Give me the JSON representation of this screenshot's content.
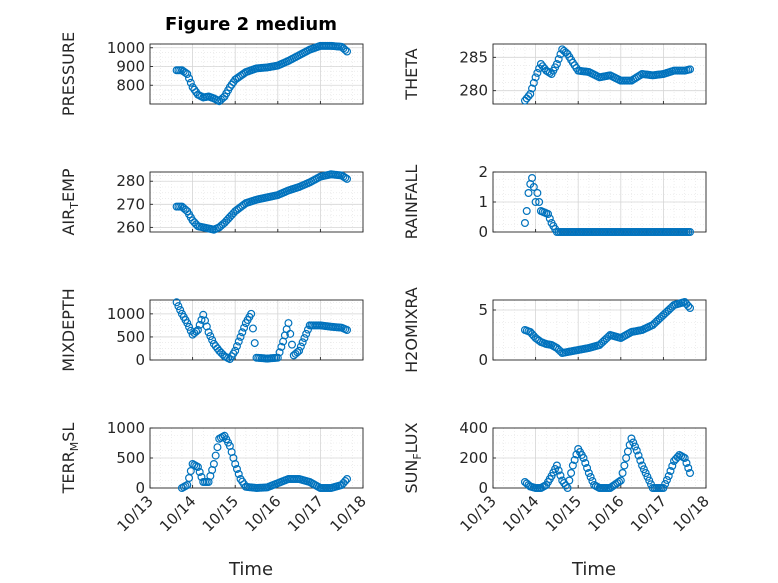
{
  "title": "Figure 2 medium",
  "xlabel": "Time",
  "x_ticks": [
    "10/13",
    "10/14",
    "10/15",
    "10/16",
    "10/17",
    "10/18"
  ],
  "marker_color": "#0072bd",
  "chart_data": [
    {
      "type": "scatter",
      "ylabel": "PRESSURE",
      "ylabel_main": "PRESSURE",
      "ylabel_sub": "",
      "ylabel_rest": "",
      "ylim": [
        700,
        1020
      ],
      "yticks": [
        800,
        900,
        1000
      ],
      "x": [
        "10/13 15:00",
        "10/13 18:00",
        "10/13 21:00",
        "10/14 00:00",
        "10/14 03:00",
        "10/14 06:00",
        "10/14 09:00",
        "10/14 12:00",
        "10/14 15:00",
        "10/14 18:00",
        "10/14 21:00",
        "10/15 00:00",
        "10/15 06:00",
        "10/15 12:00",
        "10/15 18:00",
        "10/16 00:00",
        "10/16 06:00",
        "10/16 12:00",
        "10/16 18:00",
        "10/17 00:00",
        "10/17 06:00",
        "10/17 12:00",
        "10/17 15:00"
      ],
      "values": [
        880,
        880,
        860,
        790,
        750,
        735,
        740,
        730,
        715,
        740,
        790,
        830,
        870,
        890,
        895,
        905,
        930,
        960,
        990,
        1010,
        1010,
        1005,
        980
      ]
    },
    {
      "type": "scatter",
      "ylabel": "THETA",
      "ylabel_main": "THETA",
      "ylabel_sub": "",
      "ylabel_rest": "",
      "ylim": [
        278,
        287
      ],
      "yticks": [
        280,
        285
      ],
      "x": [
        "10/13 18:00",
        "10/13 21:00",
        "10/14 00:00",
        "10/14 03:00",
        "10/14 06:00",
        "10/14 09:00",
        "10/14 12:00",
        "10/14 15:00",
        "10/14 18:00",
        "10/14 21:00",
        "10/15 00:00",
        "10/15 06:00",
        "10/15 12:00",
        "10/15 18:00",
        "10/16 00:00",
        "10/16 06:00",
        "10/16 12:00",
        "10/16 18:00",
        "10/17 00:00",
        "10/17 06:00",
        "10/17 12:00",
        "10/17 15:00"
      ],
      "values": [
        278.5,
        279.5,
        282,
        284,
        283,
        282.5,
        284,
        286.2,
        285.5,
        284.2,
        283,
        282.8,
        282,
        282.3,
        281.5,
        281.5,
        282.5,
        282.3,
        282.5,
        283,
        283,
        283.2
      ]
    },
    {
      "type": "scatter",
      "ylabel": "AIR_TEMP",
      "ylabel_main": "AIR",
      "ylabel_sub": "T",
      "ylabel_rest": "EMP",
      "ylim": [
        258,
        284
      ],
      "yticks": [
        260,
        270,
        280
      ],
      "x": [
        "10/13 15:00",
        "10/13 18:00",
        "10/13 21:00",
        "10/14 00:00",
        "10/14 03:00",
        "10/14 06:00",
        "10/14 09:00",
        "10/14 12:00",
        "10/14 15:00",
        "10/14 18:00",
        "10/15 00:00",
        "10/15 06:00",
        "10/15 12:00",
        "10/15 18:00",
        "10/16 00:00",
        "10/16 06:00",
        "10/16 12:00",
        "10/16 18:00",
        "10/17 00:00",
        "10/17 06:00",
        "10/17 12:00",
        "10/17 15:00"
      ],
      "values": [
        269,
        269,
        267,
        263,
        260.5,
        260,
        259.5,
        259,
        260,
        262,
        267,
        270.5,
        272,
        273,
        274,
        276,
        277.5,
        279.5,
        282,
        283,
        282.5,
        281
      ]
    },
    {
      "type": "scatter",
      "ylabel": "RAINFALL",
      "ylabel_main": "RAINFALL",
      "ylabel_sub": "",
      "ylabel_rest": "",
      "ylim": [
        0,
        2
      ],
      "yticks": [
        0,
        1,
        2
      ],
      "x": [
        "10/13 18:00",
        "10/13 19:00",
        "10/13 20:00",
        "10/13 21:00",
        "10/13 22:00",
        "10/13 23:00",
        "10/14 00:00",
        "10/14 01:00",
        "10/14 03:00",
        "10/14 05:00",
        "10/14 07:00",
        "10/14 09:00",
        "10/14 12:00",
        "10/14 18:00",
        "10/15 00:00",
        "10/15 12:00",
        "10/16 00:00",
        "10/16 12:00",
        "10/17 00:00",
        "10/17 12:00",
        "10/17 15:00"
      ],
      "values": [
        0.3,
        0.7,
        1.3,
        1.6,
        1.8,
        1.5,
        1.0,
        1.3,
        0.7,
        0.65,
        0.6,
        0.3,
        0,
        0,
        0,
        0,
        0,
        0,
        0,
        0,
        0
      ]
    },
    {
      "type": "scatter",
      "ylabel": "MIXDEPTH",
      "ylabel_main": "MIXDEPTH",
      "ylabel_sub": "",
      "ylabel_rest": "",
      "ylim": [
        0,
        1300
      ],
      "yticks": [
        0,
        500,
        1000
      ],
      "x": [
        "10/13 15:00",
        "10/13 18:00",
        "10/13 21:00",
        "10/14 00:00",
        "10/14 03:00",
        "10/14 06:00",
        "10/14 09:00",
        "10/14 12:00",
        "10/14 15:00",
        "10/14 18:00",
        "10/14 21:00",
        "10/15 00:00",
        "10/15 03:00",
        "10/15 06:00",
        "10/15 09:00",
        "10/15 12:00",
        "10/15 18:00",
        "10/16 00:00",
        "10/16 03:00",
        "10/16 06:00",
        "10/16 09:00",
        "10/16 12:00",
        "10/16 18:00",
        "10/17 00:00",
        "10/17 06:00",
        "10/17 12:00",
        "10/17 15:00"
      ],
      "values": [
        1250,
        1000,
        800,
        550,
        650,
        980,
        600,
        350,
        200,
        80,
        20,
        200,
        500,
        800,
        1000,
        50,
        30,
        50,
        400,
        800,
        100,
        200,
        750,
        750,
        720,
        700,
        650
      ]
    },
    {
      "type": "scatter",
      "ylabel": "H2OMIXRA",
      "ylabel_main": "H2OMIXRA",
      "ylabel_sub": "",
      "ylabel_rest": "",
      "ylim": [
        0,
        6
      ],
      "yticks": [
        0,
        5
      ],
      "x": [
        "10/13 18:00",
        "10/13 21:00",
        "10/14 00:00",
        "10/14 03:00",
        "10/14 06:00",
        "10/14 09:00",
        "10/14 12:00",
        "10/14 15:00",
        "10/14 18:00",
        "10/15 00:00",
        "10/15 06:00",
        "10/15 12:00",
        "10/15 18:00",
        "10/16 00:00",
        "10/16 06:00",
        "10/16 12:00",
        "10/16 18:00",
        "10/17 00:00",
        "10/17 06:00",
        "10/17 12:00",
        "10/17 15:00"
      ],
      "values": [
        3,
        2.8,
        2.2,
        1.8,
        1.6,
        1.5,
        1.2,
        0.7,
        0.8,
        1.0,
        1.2,
        1.5,
        2.5,
        2.2,
        2.8,
        3.0,
        3.5,
        4.5,
        5.5,
        5.8,
        5.2
      ]
    },
    {
      "type": "scatter",
      "ylabel": "TERR_MSL",
      "ylabel_main": "TERR",
      "ylabel_sub": "M",
      "ylabel_rest": "SL",
      "ylim": [
        0,
        1000
      ],
      "yticks": [
        0,
        500,
        1000
      ],
      "x": [
        "10/13 18:00",
        "10/13 21:00",
        "10/14 00:00",
        "10/14 03:00",
        "10/14 06:00",
        "10/14 09:00",
        "10/14 12:00",
        "10/14 15:00",
        "10/14 18:00",
        "10/14 21:00",
        "10/15 00:00",
        "10/15 03:00",
        "10/15 06:00",
        "10/15 12:00",
        "10/15 18:00",
        "10/16 00:00",
        "10/16 06:00",
        "10/16 12:00",
        "10/16 18:00",
        "10/17 00:00",
        "10/17 06:00",
        "10/17 12:00",
        "10/17 15:00"
      ],
      "values": [
        0,
        50,
        400,
        350,
        100,
        100,
        400,
        820,
        870,
        700,
        400,
        150,
        20,
        0,
        10,
        80,
        150,
        150,
        100,
        0,
        0,
        50,
        150
      ]
    },
    {
      "type": "scatter",
      "ylabel": "SUN_FLUX",
      "ylabel_main": "SUN",
      "ylabel_sub": "F",
      "ylabel_rest": "LUX",
      "ylim": [
        0,
        400
      ],
      "yticks": [
        0,
        200,
        400
      ],
      "x": [
        "10/13 18:00",
        "10/13 21:00",
        "10/14 00:00",
        "10/14 03:00",
        "10/14 06:00",
        "10/14 09:00",
        "10/14 12:00",
        "10/14 15:00",
        "10/14 18:00",
        "10/14 21:00",
        "10/15 00:00",
        "10/15 03:00",
        "10/15 06:00",
        "10/15 09:00",
        "10/15 12:00",
        "10/15 18:00",
        "10/16 00:00",
        "10/16 03:00",
        "10/16 06:00",
        "10/16 09:00",
        "10/16 12:00",
        "10/16 18:00",
        "10/17 00:00",
        "10/17 03:00",
        "10/17 06:00",
        "10/17 09:00",
        "10/17 12:00",
        "10/17 15:00"
      ],
      "values": [
        40,
        10,
        0,
        0,
        20,
        80,
        150,
        50,
        0,
        150,
        260,
        200,
        100,
        20,
        0,
        0,
        50,
        200,
        330,
        250,
        150,
        0,
        0,
        80,
        180,
        220,
        200,
        100
      ]
    }
  ]
}
